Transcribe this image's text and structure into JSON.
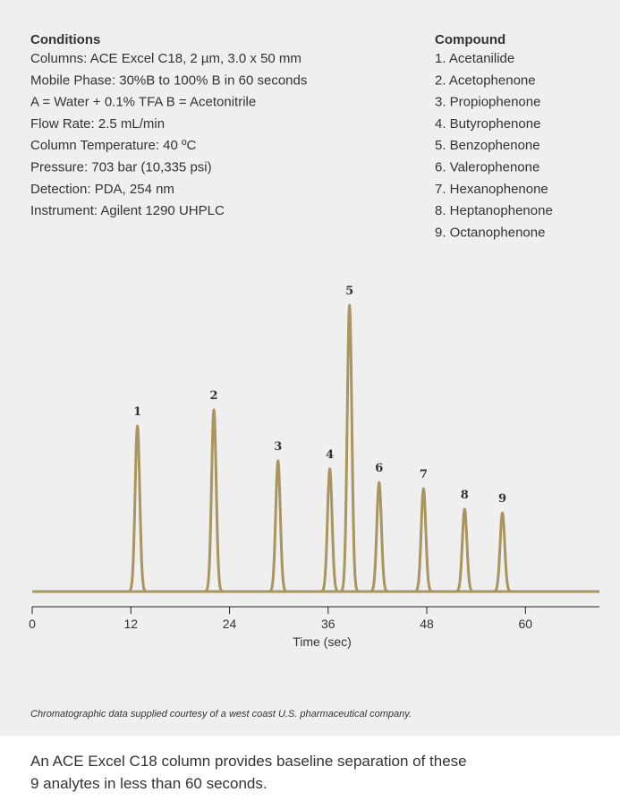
{
  "conditions": {
    "heading": "Conditions",
    "lines": [
      "Columns: ACE Excel C18, 2 µm, 3.0 x 50 mm",
      "Mobile Phase: 30%B to 100% B in 60 seconds",
      "A = Water + 0.1% TFA B = Acetonitrile",
      "Flow Rate: 2.5 mL/min",
      "Column Temperature: 40 ºC",
      "Pressure: 703 bar (10,335 psi)",
      "Detection: PDA, 254 nm",
      "Instrument: Agilent 1290 UHPLC"
    ]
  },
  "compounds": {
    "heading": "Compound",
    "items": [
      "1. Acetanilide",
      "2. Acetophenone",
      "3. Propiophenone",
      "4. Butyrophenone",
      "5. Benzophenone",
      "6. Valerophenone",
      "7. Hexanophenone",
      "8. Heptanophenone",
      "9. Octanophenone"
    ]
  },
  "chart_data": {
    "type": "chromatogram",
    "x_label": "Time (sec)",
    "color": "#a8955f",
    "categories": [
      "1",
      "2",
      "3",
      "4",
      "5",
      "6",
      "7",
      "8",
      "9"
    ],
    "x": [
      12.8,
      22.1,
      29.9,
      36.2,
      38.6,
      42.2,
      47.6,
      52.6,
      57.2
    ],
    "values": [
      185,
      203,
      146,
      137,
      320,
      122,
      115,
      92,
      88
    ],
    "xlim": [
      0,
      69
    ],
    "xticks": [
      0,
      12,
      24,
      36,
      48,
      60
    ],
    "ylim": [
      0,
      340
    ]
  },
  "footnote": "Chromatographic data supplied courtesy of a west coast U.S. pharmaceutical company.",
  "body": [
    "An ACE Excel C18 column provides baseline separation of these",
    "9 analytes in less than 60 seconds."
  ]
}
